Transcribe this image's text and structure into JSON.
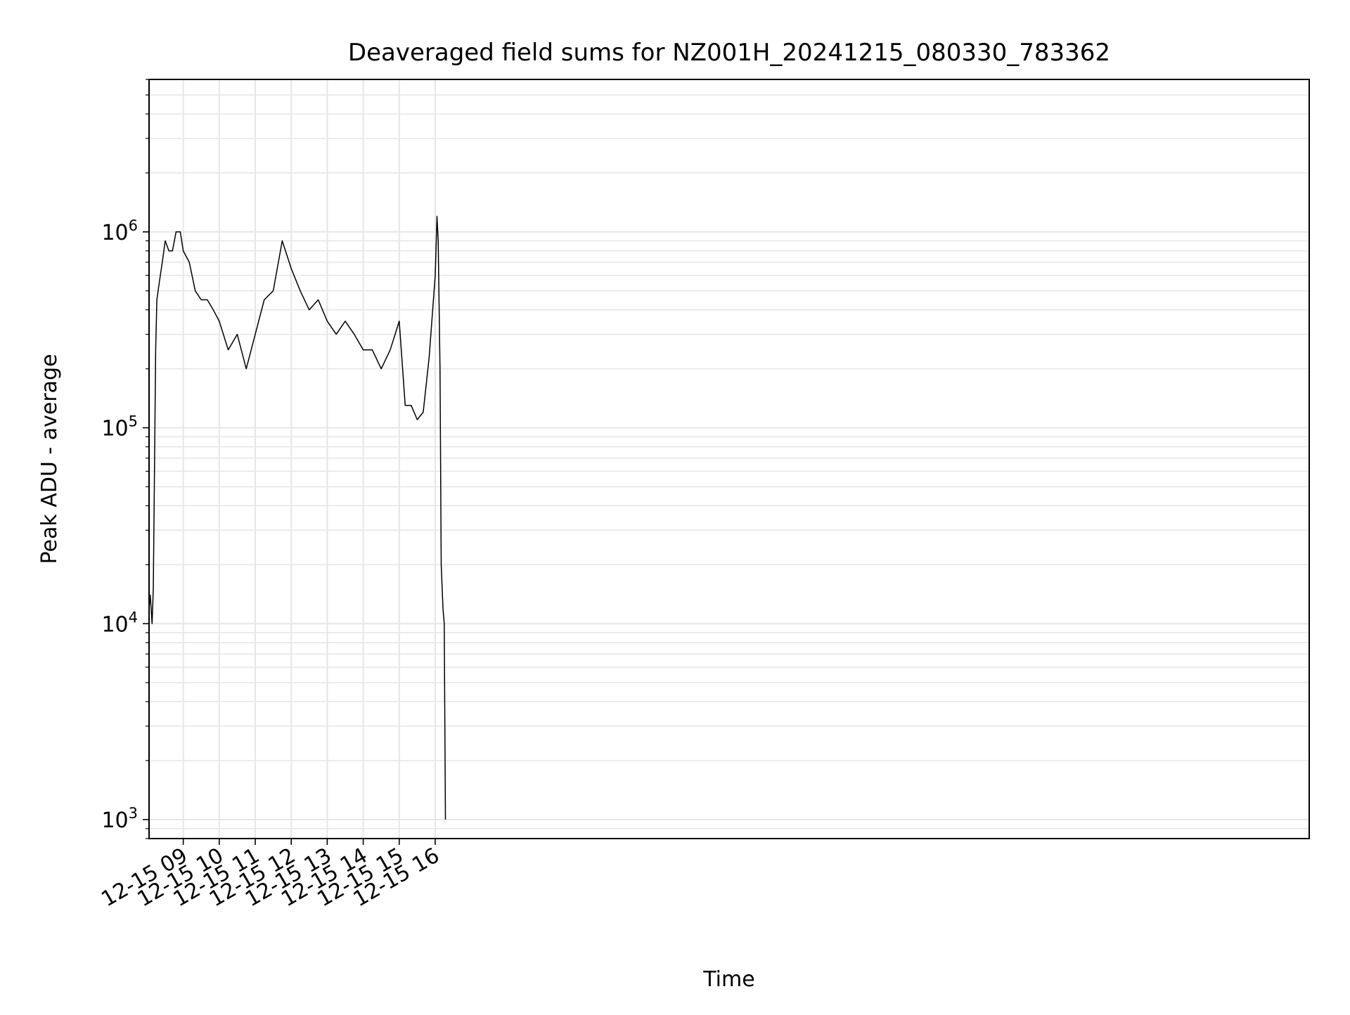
{
  "chart_data": {
    "type": "line",
    "title": "Deaveraged field sums for NZ001H_20241215_080330_783362",
    "xlabel": "Time",
    "ylabel": "Peak ADU - average",
    "yscale": "log",
    "ylim": [
      800,
      6000000
    ],
    "xlim": [
      "2024-12-15 08:03",
      "2024-12-16 16:17"
    ],
    "x_tick_labels": [
      "12-15 09",
      "12-15 10",
      "12-15 11",
      "12-15 12",
      "12-15 13",
      "12-15 14",
      "12-15 15",
      "12-15 16"
    ],
    "y_tick_labels": [
      {
        "base": "10",
        "exp": "3"
      },
      {
        "base": "10",
        "exp": "4"
      },
      {
        "base": "10",
        "exp": "5"
      },
      {
        "base": "10",
        "exp": "6"
      }
    ],
    "grid": true,
    "line_color": "#000000",
    "grid_color": "#e6e6e6",
    "series": [
      {
        "x": [
          "2024-12-15 08:03",
          "2024-12-15 08:05",
          "2024-12-15 08:08",
          "2024-12-15 08:10",
          "2024-12-15 08:12",
          "2024-12-15 08:14",
          "2024-12-15 08:16",
          "2024-12-15 08:20",
          "2024-12-15 08:25",
          "2024-12-15 08:30",
          "2024-12-15 08:36",
          "2024-12-15 08:42",
          "2024-12-15 08:48",
          "2024-12-15 08:55",
          "2024-12-15 09:00",
          "2024-12-15 09:10",
          "2024-12-15 09:20",
          "2024-12-15 09:30",
          "2024-12-15 09:40",
          "2024-12-15 09:50",
          "2024-12-15 10:00",
          "2024-12-15 10:15",
          "2024-12-15 10:30",
          "2024-12-15 10:45",
          "2024-12-15 11:00",
          "2024-12-15 11:15",
          "2024-12-15 11:30",
          "2024-12-15 11:45",
          "2024-12-15 12:00",
          "2024-12-15 12:15",
          "2024-12-15 12:30",
          "2024-12-15 12:45",
          "2024-12-15 13:00",
          "2024-12-15 13:15",
          "2024-12-15 13:30",
          "2024-12-15 13:45",
          "2024-12-15 14:00",
          "2024-12-15 14:15",
          "2024-12-15 14:30",
          "2024-12-15 14:45",
          "2024-12-15 15:00",
          "2024-12-15 15:10",
          "2024-12-15 15:20",
          "2024-12-15 15:30",
          "2024-12-15 15:40",
          "2024-12-15 15:50",
          "2024-12-15 16:00",
          "2024-12-15 16:03",
          "2024-12-15 16:05",
          "2024-12-15 16:08",
          "2024-12-15 16:10",
          "2024-12-15 16:13",
          "2024-12-15 16:15",
          "2024-12-15 16:17"
        ],
        "values": [
          12000,
          14000,
          10000,
          15000,
          60000,
          250000,
          450000,
          550000,
          700000,
          900000,
          800000,
          800000,
          1000000,
          1000000,
          800000,
          700000,
          500000,
          450000,
          450000,
          400000,
          350000,
          250000,
          300000,
          200000,
          300000,
          450000,
          500000,
          900000,
          650000,
          500000,
          400000,
          450000,
          350000,
          300000,
          350000,
          300000,
          250000,
          250000,
          200000,
          250000,
          350000,
          130000,
          130000,
          110000,
          120000,
          230000,
          600000,
          1200000,
          900000,
          200000,
          20000,
          12000,
          10000,
          1000
        ]
      }
    ]
  }
}
